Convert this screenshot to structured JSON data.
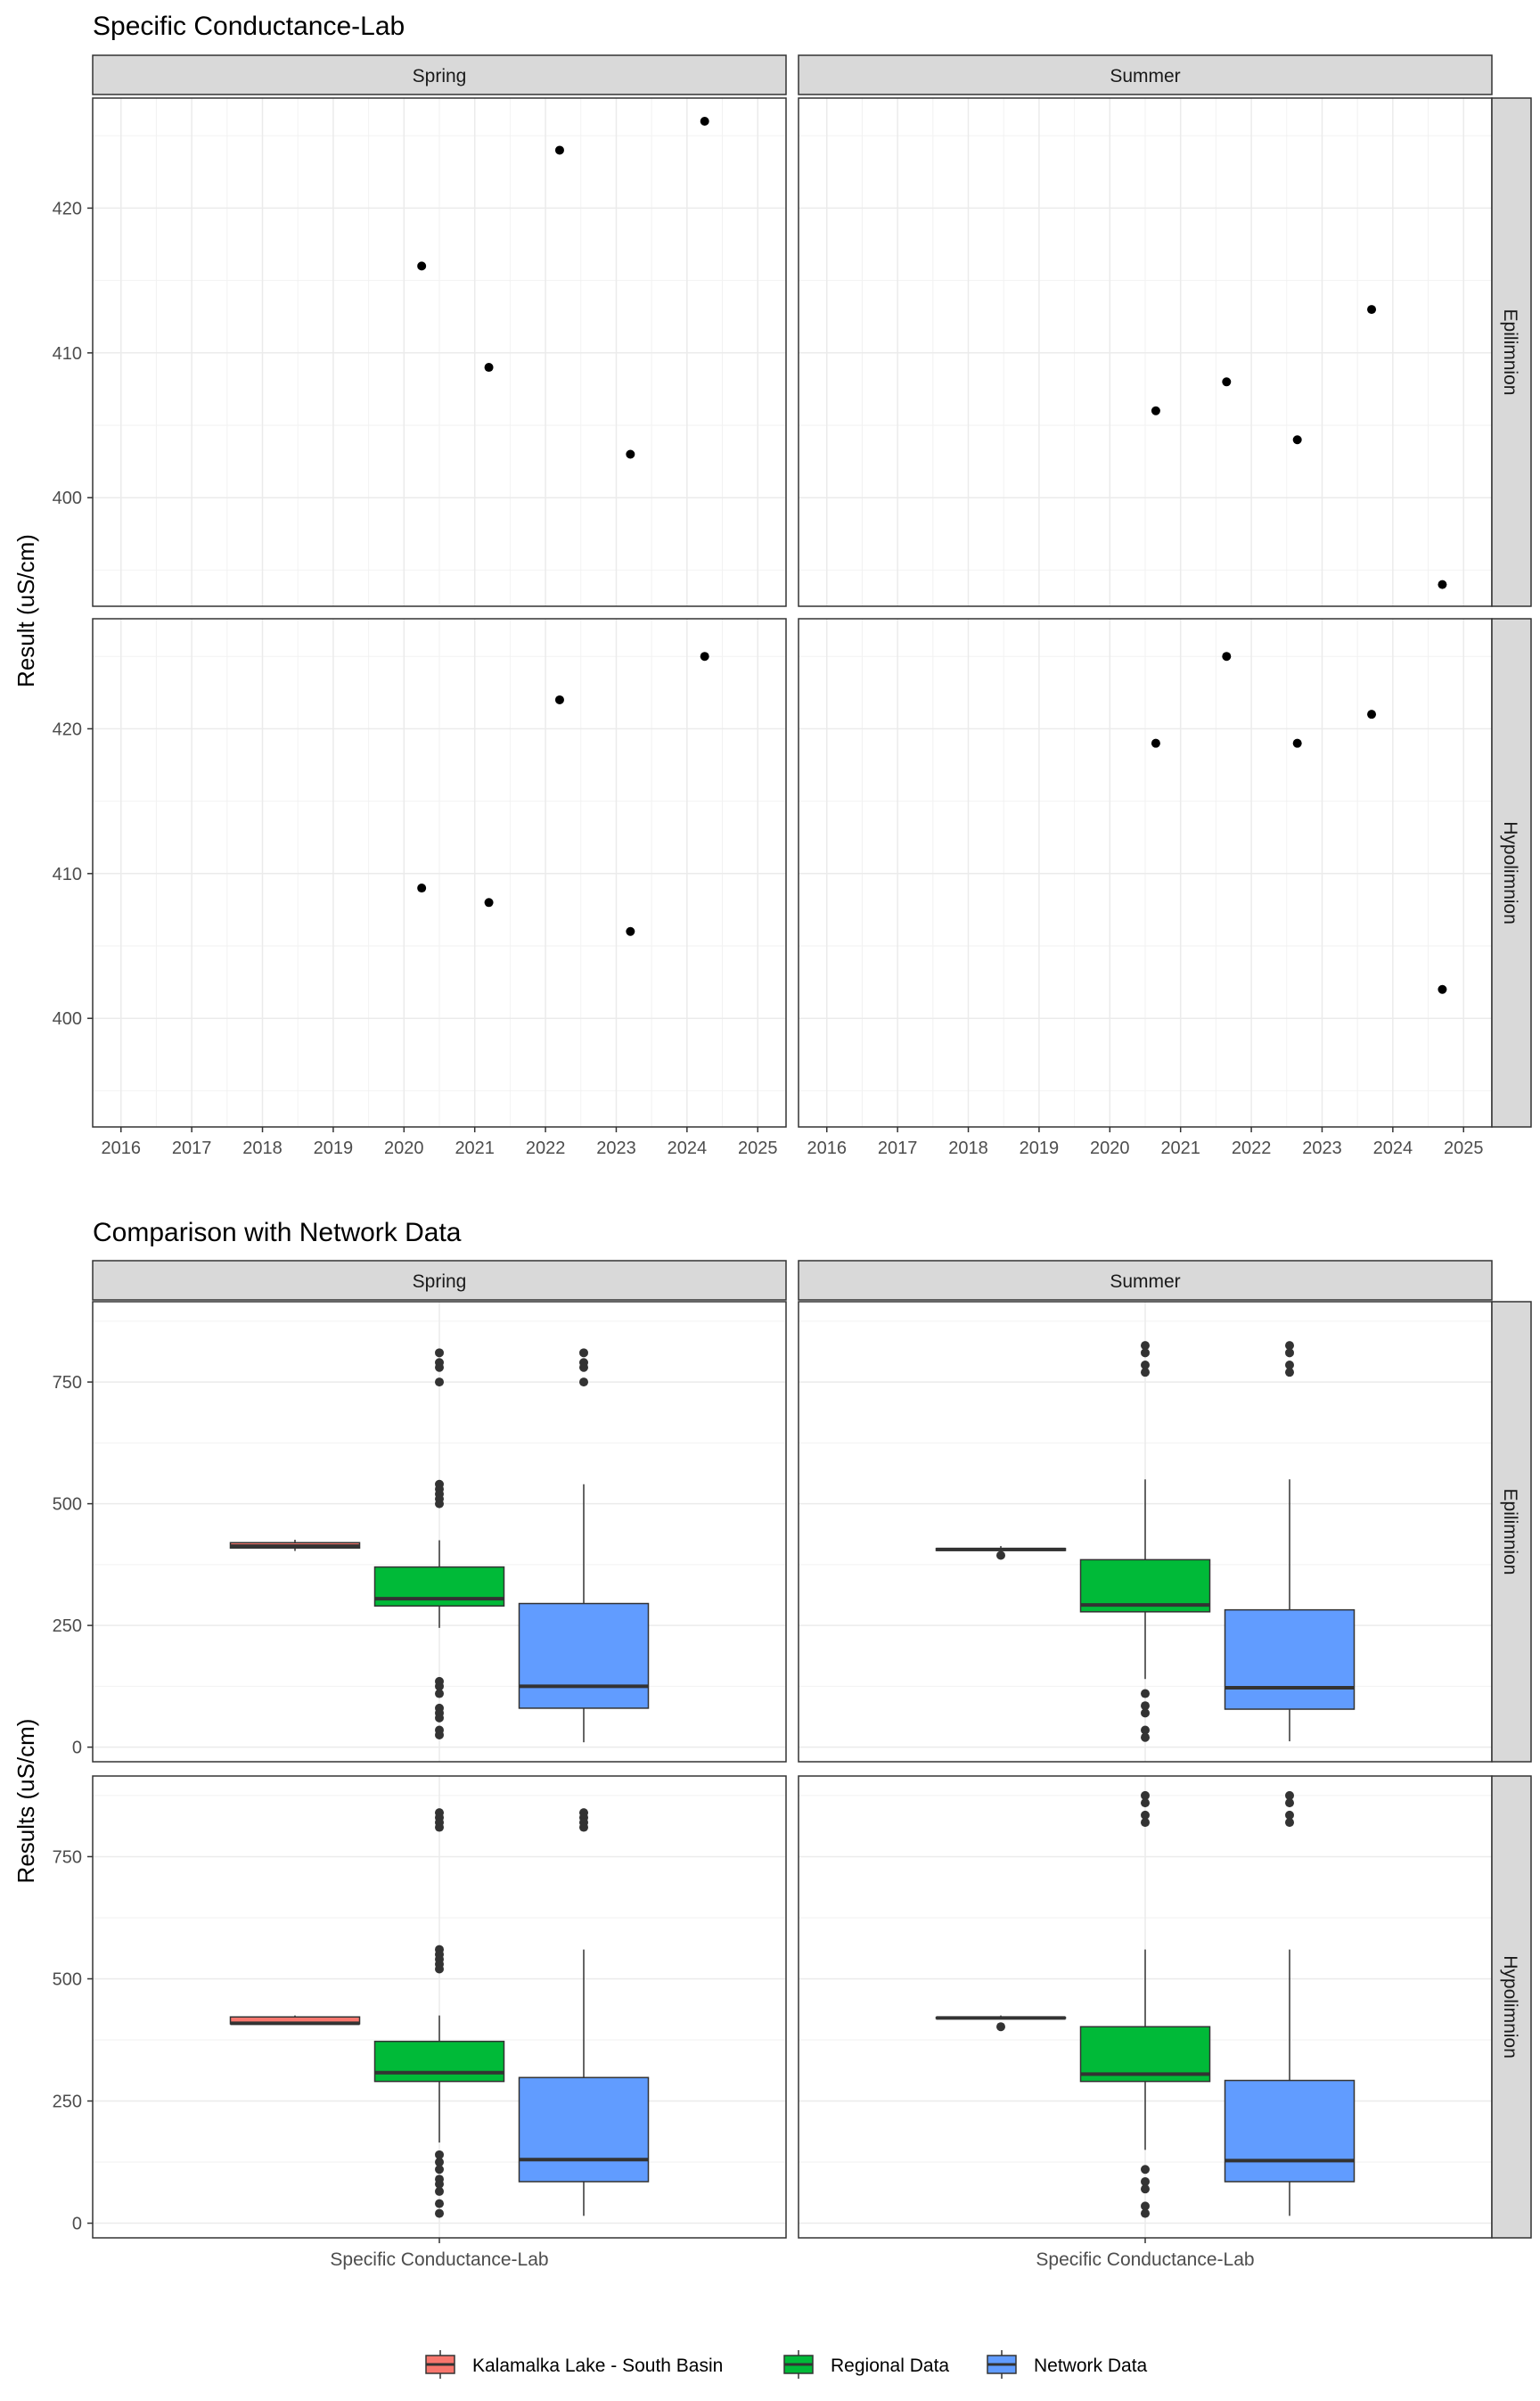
{
  "chart_data": [
    {
      "type": "scatter",
      "title": "Specific Conductance-Lab",
      "ylabel": "Result (uS/cm)",
      "xlabel": "",
      "facet_columns": [
        "Spring",
        "Summer"
      ],
      "facet_rows": [
        "Epilimnion",
        "Hypolimnion"
      ],
      "xlim": [
        2015.6,
        2025.4
      ],
      "ylim": [
        392.5,
        427.6
      ],
      "x_ticks": [
        "2016",
        "2017",
        "2018",
        "2019",
        "2020",
        "2021",
        "2022",
        "2023",
        "2024",
        "2025"
      ],
      "y_ticks": [
        400,
        410,
        420
      ],
      "grid": true,
      "panels": [
        {
          "season": "Spring",
          "layer": "Epilimnion",
          "points": [
            [
              2020.25,
              416
            ],
            [
              2021.2,
              409
            ],
            [
              2022.2,
              424
            ],
            [
              2023.2,
              403
            ],
            [
              2024.25,
              426
            ]
          ]
        },
        {
          "season": "Summer",
          "layer": "Epilimnion",
          "points": [
            [
              2020.65,
              406
            ],
            [
              2021.65,
              408
            ],
            [
              2022.65,
              404
            ],
            [
              2023.7,
              413
            ],
            [
              2024.7,
              394
            ]
          ]
        },
        {
          "season": "Spring",
          "layer": "Hypolimnion",
          "points": [
            [
              2020.25,
              409
            ],
            [
              2021.2,
              408
            ],
            [
              2022.2,
              422
            ],
            [
              2023.2,
              406
            ],
            [
              2024.25,
              425
            ]
          ]
        },
        {
          "season": "Summer",
          "layer": "Hypolimnion",
          "points": [
            [
              2020.65,
              419
            ],
            [
              2021.65,
              425
            ],
            [
              2022.65,
              419
            ],
            [
              2023.7,
              421
            ],
            [
              2024.7,
              402
            ]
          ]
        }
      ]
    },
    {
      "type": "boxplot",
      "title": "Comparison with Network Data",
      "ylabel": "Results (uS/cm)",
      "xlabel": "",
      "x_category": "Specific Conductance-Lab",
      "facet_columns": [
        "Spring",
        "Summer"
      ],
      "facet_rows": [
        "Epilimnion",
        "Hypolimnion"
      ],
      "ylim": [
        -30,
        915
      ],
      "y_ticks": [
        0,
        250,
        500,
        750
      ],
      "grid": true,
      "legend": {
        "position": "bottom",
        "entries": [
          {
            "name": "Kalamalka Lake - South Basin",
            "color": "#F8766D"
          },
          {
            "name": "Regional Data",
            "color": "#00BA38"
          },
          {
            "name": "Network Data",
            "color": "#619CFF"
          }
        ]
      },
      "panels": [
        {
          "season": "Spring",
          "layer": "Epilimnion",
          "boxes": [
            {
              "series": "Kalamalka Lake - South Basin",
              "q1": 409,
              "median": 413,
              "q3": 420,
              "whisker_low": 403,
              "whisker_high": 426,
              "outliers": []
            },
            {
              "series": "Regional Data",
              "q1": 290,
              "median": 305,
              "q3": 370,
              "whisker_low": 245,
              "whisker_high": 425,
              "outliers": [
                810,
                790,
                780,
                750,
                540,
                530,
                520,
                510,
                500,
                135,
                125,
                110,
                80,
                70,
                60,
                35,
                25
              ]
            },
            {
              "series": "Network Data",
              "q1": 80,
              "median": 125,
              "q3": 295,
              "whisker_low": 10,
              "whisker_high": 540,
              "outliers": [
                810,
                790,
                780,
                750
              ]
            }
          ]
        },
        {
          "season": "Summer",
          "layer": "Epilimnion",
          "boxes": [
            {
              "series": "Kalamalka Lake - South Basin",
              "q1": 404,
              "median": 406,
              "q3": 408,
              "whisker_low": 404,
              "whisker_high": 413,
              "outliers": [
                394
              ]
            },
            {
              "series": "Regional Data",
              "q1": 278,
              "median": 292,
              "q3": 385,
              "whisker_low": 140,
              "whisker_high": 550,
              "outliers": [
                825,
                810,
                785,
                770,
                110,
                85,
                70,
                35,
                20
              ]
            },
            {
              "series": "Network Data",
              "q1": 78,
              "median": 122,
              "q3": 282,
              "whisker_low": 12,
              "whisker_high": 550,
              "outliers": [
                825,
                810,
                785,
                770
              ]
            }
          ]
        },
        {
          "season": "Spring",
          "layer": "Hypolimnion",
          "boxes": [
            {
              "series": "Kalamalka Lake - South Basin",
              "q1": 408,
              "median": 409,
              "q3": 422,
              "whisker_low": 406,
              "whisker_high": 425,
              "outliers": []
            },
            {
              "series": "Regional Data",
              "q1": 290,
              "median": 308,
              "q3": 372,
              "whisker_low": 165,
              "whisker_high": 425,
              "outliers": [
                840,
                830,
                820,
                810,
                560,
                550,
                540,
                530,
                520,
                140,
                125,
                110,
                90,
                80,
                65,
                40,
                20
              ]
            },
            {
              "series": "Network Data",
              "q1": 85,
              "median": 130,
              "q3": 298,
              "whisker_low": 15,
              "whisker_high": 560,
              "outliers": [
                840,
                830,
                820,
                810
              ]
            }
          ]
        },
        {
          "season": "Summer",
          "layer": "Hypolimnion",
          "boxes": [
            {
              "series": "Kalamalka Lake - South Basin",
              "q1": 419,
              "median": 420,
              "q3": 421,
              "whisker_low": 419,
              "whisker_high": 425,
              "outliers": [
                402
              ]
            },
            {
              "series": "Regional Data",
              "q1": 290,
              "median": 305,
              "q3": 402,
              "whisker_low": 150,
              "whisker_high": 560,
              "outliers": [
                875,
                860,
                835,
                820,
                110,
                85,
                70,
                35,
                20
              ]
            },
            {
              "series": "Network Data",
              "q1": 85,
              "median": 128,
              "q3": 292,
              "whisker_low": 15,
              "whisker_high": 560,
              "outliers": [
                875,
                860,
                835,
                820
              ]
            }
          ]
        }
      ]
    }
  ]
}
